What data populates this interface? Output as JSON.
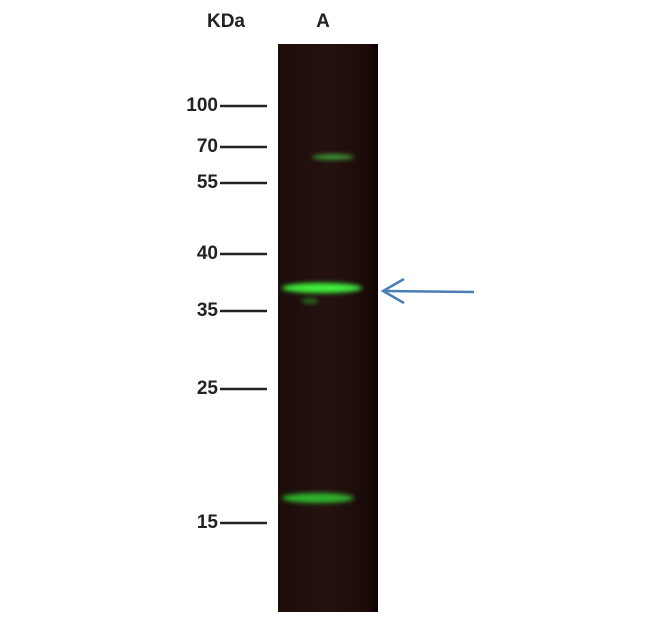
{
  "header": {
    "unit_label": "KDa",
    "lane_label": "A"
  },
  "markers": [
    "100",
    "70",
    "55",
    "40",
    "35",
    "25",
    "15"
  ]
}
